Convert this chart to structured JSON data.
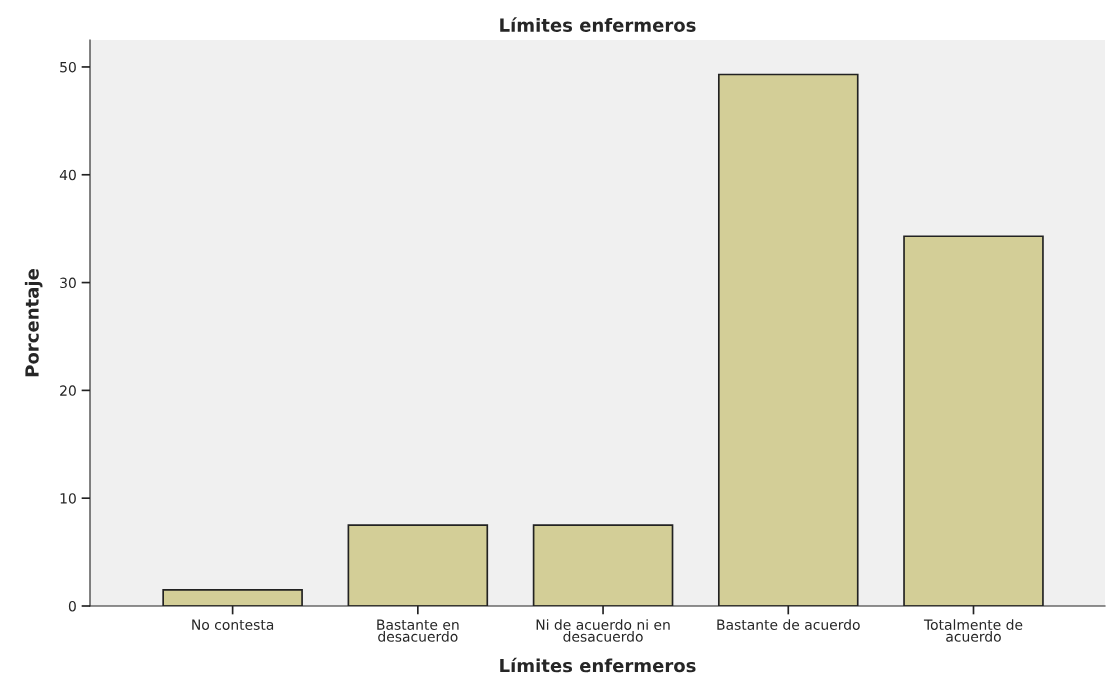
{
  "chart_data": {
    "type": "bar",
    "title": "Límites enfermeros",
    "xlabel": "Límites enfermeros",
    "ylabel": "Porcentaje",
    "categories": [
      "No contesta",
      "Bastante en\ndesacuerdo",
      "Ni de acuerdo ni en\ndesacuerdo",
      "Bastante de acuerdo",
      "Totalmente de\nacuerdo"
    ],
    "values": [
      1.5,
      7.5,
      7.5,
      49.3,
      34.3
    ],
    "color": "#d3ce97",
    "ylim": [
      0,
      52.5
    ],
    "yticks": [
      0,
      10,
      20,
      30,
      40,
      50
    ],
    "grid": false,
    "legend": false
  }
}
